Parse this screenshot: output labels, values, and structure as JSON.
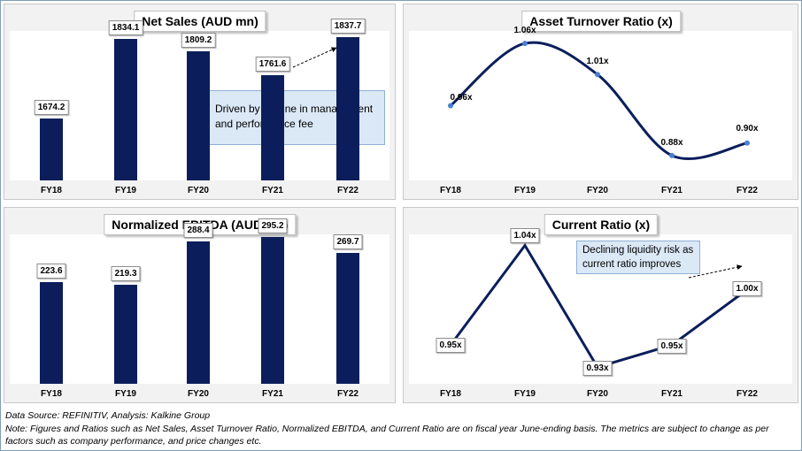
{
  "charts": {
    "net_sales": {
      "title": "Net Sales (AUD mn)",
      "callout": "Driven by decline in management and performance fee"
    },
    "asset_turnover": {
      "title": "Asset Turnover Ratio (x)"
    },
    "ebitda": {
      "title": "Normalized EBITDA (AUD mn)"
    },
    "current_ratio": {
      "title": "Current Ratio (x)",
      "callout": "Declining liquidity risk as current ratio improves"
    }
  },
  "chart_data": [
    {
      "type": "bar",
      "title": "Net Sales (AUD mn)",
      "categories": [
        "FY18",
        "FY19",
        "FY20",
        "FY21",
        "FY22"
      ],
      "values": [
        1674.2,
        1834.1,
        1809.2,
        1761.6,
        1837.7
      ],
      "data_labels": [
        "1674.2",
        "1834.1",
        "1809.2",
        "1761.6",
        "1837.7"
      ],
      "ylim": [
        1550,
        1850
      ],
      "grid": false
    },
    {
      "type": "line",
      "title": "Asset Turnover Ratio (x)",
      "categories": [
        "FY18",
        "FY19",
        "FY20",
        "FY21",
        "FY22"
      ],
      "values": [
        0.96,
        1.06,
        1.01,
        0.88,
        0.9
      ],
      "data_labels": [
        "0.96x",
        "1.06x",
        "1.01x",
        "0.88x",
        "0.90x"
      ],
      "smooth": true,
      "ylim": [
        0.84,
        1.08
      ],
      "grid": false
    },
    {
      "type": "bar",
      "title": "Normalized EBITDA (AUD mn)",
      "categories": [
        "FY18",
        "FY19",
        "FY20",
        "FY21",
        "FY22"
      ],
      "values": [
        223.6,
        219.3,
        288.4,
        295.2,
        269.7
      ],
      "data_labels": [
        "223.6",
        "219.3",
        "288.4",
        "295.2",
        "269.7"
      ],
      "ylim": [
        60,
        300
      ],
      "grid": false
    },
    {
      "type": "line",
      "title": "Current Ratio (x)",
      "categories": [
        "FY18",
        "FY19",
        "FY20",
        "FY21",
        "FY22"
      ],
      "values": [
        0.95,
        1.04,
        0.93,
        0.95,
        1.0
      ],
      "data_labels": [
        "0.95x",
        "1.04x",
        "0.93x",
        "0.95x",
        "1.00x"
      ],
      "smooth": false,
      "ylim": [
        0.915,
        1.05
      ],
      "grid": false
    }
  ],
  "footer": {
    "source": "Data Source: REFINITIV, Analysis: Kalkine Group",
    "note": "Note: Figures and Ratios such as Net Sales, Asset Turnover Ratio, Normalized EBITDA, and Current Ratio are on fiscal year June-ending basis. The metrics are subject to change as per factors such as company performance, and price changes etc."
  },
  "colors": {
    "bar": "#0b1e5b",
    "line": "#0b1e5b",
    "marker": "#4a7fd4",
    "panel_bg": "#f2f2f2",
    "callout_bg": "#dbe8f6"
  }
}
